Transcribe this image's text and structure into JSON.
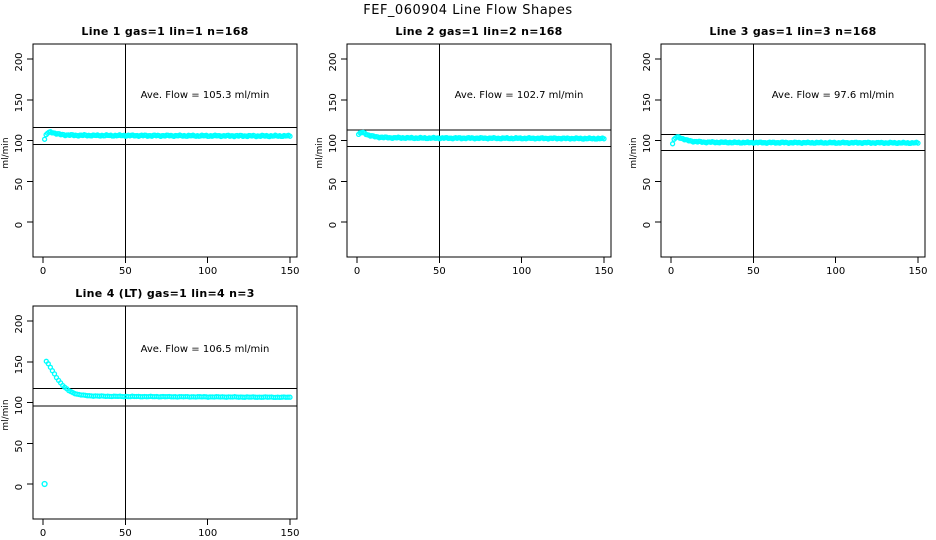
{
  "page_title": "FEF_060904  Line Flow Shapes",
  "colors": {
    "marker": "#00FFFF",
    "axis": "#000000",
    "background": "#FFFFFF",
    "text": "#000000"
  },
  "chart_data": [
    {
      "type": "scatter",
      "title": "Line 1 gas=1 lin=1 n=168",
      "annotation": "Ave. Flow =  105.3  ml/min",
      "ave_flow_ml_min": 105.3,
      "n": 168,
      "marker_count": 168,
      "xlabel": "",
      "ylabel": "ml/min",
      "xticks": [
        0,
        50,
        100,
        150
      ],
      "yticks": [
        0,
        50,
        100,
        150,
        200
      ],
      "xlim": [
        -6,
        154
      ],
      "ylim": [
        -43,
        218
      ],
      "grid": false,
      "legend": false,
      "ref_lines_h": [
        115.8,
        94.8
      ],
      "ref_line_v": 50,
      "x_range": [
        1,
        150
      ],
      "keypoints": [
        [
          1,
          101.5
        ],
        [
          2,
          107
        ],
        [
          3,
          109.5
        ],
        [
          4,
          110.3
        ],
        [
          5,
          110.3
        ],
        [
          6,
          109.8
        ],
        [
          8,
          108.5
        ],
        [
          10,
          107.5
        ],
        [
          14,
          106.8
        ],
        [
          20,
          106.4
        ],
        [
          30,
          106.2
        ],
        [
          60,
          106
        ],
        [
          100,
          105.8
        ],
        [
          130,
          105.6
        ],
        [
          150,
          105.6
        ]
      ],
      "outliers": []
    },
    {
      "type": "scatter",
      "title": "Line 2 gas=1 lin=2 n=168",
      "annotation": "Ave. Flow =  102.7  ml/min",
      "ave_flow_ml_min": 102.7,
      "n": 168,
      "marker_count": 168,
      "xlabel": "",
      "ylabel": "ml/min",
      "xticks": [
        0,
        50,
        100,
        150
      ],
      "yticks": [
        0,
        50,
        100,
        150,
        200
      ],
      "xlim": [
        -6,
        154
      ],
      "ylim": [
        -43,
        218
      ],
      "grid": false,
      "legend": false,
      "ref_lines_h": [
        113.0,
        92.4
      ],
      "ref_line_v": 50,
      "x_range": [
        1,
        150
      ],
      "keypoints": [
        [
          1,
          107.5
        ],
        [
          2,
          109
        ],
        [
          3,
          109.8
        ],
        [
          4,
          109.5
        ],
        [
          5,
          108.5
        ],
        [
          6,
          107.5
        ],
        [
          8,
          106
        ],
        [
          10,
          105
        ],
        [
          14,
          104
        ],
        [
          20,
          103.4
        ],
        [
          40,
          103
        ],
        [
          80,
          102.8
        ],
        [
          120,
          102.6
        ],
        [
          150,
          102.3
        ]
      ],
      "outliers": []
    },
    {
      "type": "scatter",
      "title": "Line 3 gas=1 lin=3 n=168",
      "annotation": "Ave. Flow =  97.6  ml/min",
      "ave_flow_ml_min": 97.6,
      "n": 168,
      "marker_count": 168,
      "xlabel": "",
      "ylabel": "ml/min",
      "xticks": [
        0,
        50,
        100,
        150
      ],
      "yticks": [
        0,
        50,
        100,
        150,
        200
      ],
      "xlim": [
        -6,
        154
      ],
      "ylim": [
        -43,
        218
      ],
      "grid": false,
      "legend": false,
      "ref_lines_h": [
        107.4,
        87.8
      ],
      "ref_line_v": 50,
      "x_range": [
        1,
        150
      ],
      "keypoints": [
        [
          1,
          96
        ],
        [
          2,
          101.5
        ],
        [
          3,
          103.8
        ],
        [
          4,
          104.3
        ],
        [
          5,
          104
        ],
        [
          6,
          103
        ],
        [
          8,
          101.5
        ],
        [
          10,
          100
        ],
        [
          14,
          98.8
        ],
        [
          20,
          98
        ],
        [
          40,
          97.5
        ],
        [
          80,
          97.3
        ],
        [
          120,
          97.2
        ],
        [
          150,
          97
        ]
      ],
      "outliers": []
    },
    {
      "type": "scatter",
      "title": "Line 4 (LT) gas=1 lin=4 n=3",
      "annotation": "Ave. Flow =  106.5  ml/min",
      "ave_flow_ml_min": 106.5,
      "n": 3,
      "marker_count": 120,
      "xlabel": "",
      "ylabel": "ml/min",
      "xticks": [
        0,
        50,
        100,
        150
      ],
      "yticks": [
        0,
        50,
        100,
        150,
        200
      ],
      "xlim": [
        -6,
        154
      ],
      "ylim": [
        -43,
        218
      ],
      "grid": false,
      "legend": false,
      "ref_lines_h": [
        117.2,
        95.9
      ],
      "ref_line_v": 50,
      "x_range": [
        2,
        150
      ],
      "keypoints": [
        [
          2,
          150.5
        ],
        [
          3,
          148
        ],
        [
          4,
          145
        ],
        [
          5,
          141.5
        ],
        [
          6,
          138
        ],
        [
          7,
          134.8
        ],
        [
          8,
          131.5
        ],
        [
          9,
          128.5
        ],
        [
          10,
          125.8
        ],
        [
          11,
          123.3
        ],
        [
          12,
          121
        ],
        [
          13,
          119
        ],
        [
          14,
          117.2
        ],
        [
          15,
          115.7
        ],
        [
          16,
          114.3
        ],
        [
          17,
          113.2
        ],
        [
          18,
          112.2
        ],
        [
          19,
          111.4
        ],
        [
          20,
          110.7
        ],
        [
          22,
          109.7
        ],
        [
          24,
          109
        ],
        [
          26,
          108.6
        ],
        [
          28,
          108.3
        ],
        [
          30,
          108.1
        ],
        [
          35,
          107.8
        ],
        [
          40,
          107.6
        ],
        [
          50,
          107.4
        ],
        [
          60,
          107.3
        ],
        [
          70,
          107.2
        ],
        [
          80,
          107.1
        ],
        [
          90,
          107
        ],
        [
          100,
          106.9
        ],
        [
          110,
          106.8
        ],
        [
          120,
          106.7
        ],
        [
          130,
          106.6
        ],
        [
          140,
          106.5
        ],
        [
          150,
          106.4
        ]
      ],
      "outliers": [
        [
          1,
          0
        ]
      ]
    }
  ]
}
